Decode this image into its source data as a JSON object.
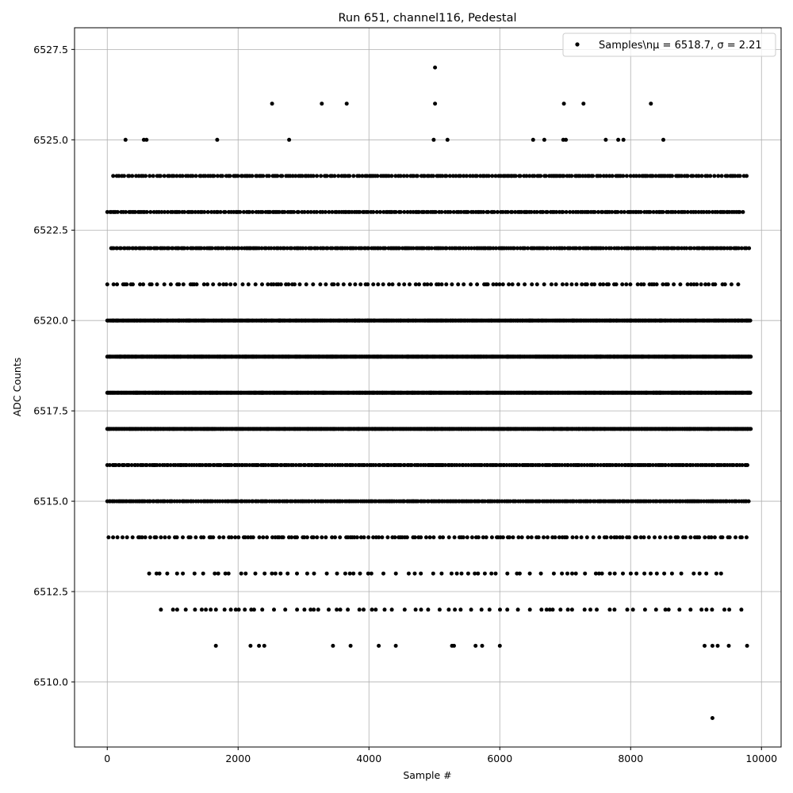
{
  "chart_data": {
    "type": "scatter",
    "title": "Run 651, channel116, Pedestal",
    "xlabel": "Sample #",
    "ylabel": "ADC Counts",
    "xlim": [
      -500,
      10300
    ],
    "ylim": [
      6508.2,
      6528.1
    ],
    "xticks": [
      0,
      2000,
      4000,
      6000,
      8000,
      10000
    ],
    "xtick_labels": [
      "0",
      "2000",
      "4000",
      "6000",
      "8000",
      "10000"
    ],
    "yticks": [
      6510.0,
      6512.5,
      6515.0,
      6517.5,
      6520.0,
      6522.5,
      6525.0,
      6527.5
    ],
    "ytick_labels": [
      "6510.0",
      "6512.5",
      "6515.0",
      "6517.5",
      "6520.0",
      "6522.5",
      "6525.0",
      "6527.5"
    ],
    "grid": true,
    "legend": {
      "position": "top-right",
      "label": "Samples\\n$\\mu$ = 6518.7, $\\sigma$ = 2.21",
      "label_display": "Samples\\nμ = 6518.7, σ = 2.21"
    },
    "marker_color": "#000000",
    "n_samples": 9850,
    "series": [
      {
        "name": "Samples\\nμ = 6518.7, σ = 2.21",
        "levels": [
          {
            "y": 6518,
            "x_start": 0,
            "x_end": 9840,
            "step": 12
          },
          {
            "y": 6519,
            "x_start": 0,
            "x_end": 9840,
            "step": 13
          },
          {
            "y": 6520,
            "x_start": 0,
            "x_end": 9840,
            "step": 14
          },
          {
            "y": 6517,
            "x_start": 0,
            "x_end": 9840,
            "step": 15
          },
          {
            "y": 6516,
            "x_start": 0,
            "x_end": 9820,
            "step": 28
          },
          {
            "y": 6515,
            "x_start": 0,
            "x_end": 9820,
            "step": 26
          },
          {
            "y": 6522,
            "x_start": 60,
            "x_end": 9820,
            "step": 30
          },
          {
            "y": 6523,
            "x_start": 0,
            "x_end": 9720,
            "step": 34
          },
          {
            "y": 6524,
            "x_start": 90,
            "x_end": 9780,
            "step": 38
          },
          {
            "y": 6521,
            "x_start": 0,
            "x_end": 9720,
            "step": 70
          },
          {
            "y": 6514,
            "x_start": 20,
            "x_end": 9800,
            "step": 58
          },
          {
            "y": 6513,
            "x_start": 640,
            "x_end": 9500,
            "step": 120
          },
          {
            "y": 6512,
            "x_start": 820,
            "x_end": 9710,
            "step": 125
          }
        ],
        "points": [
          {
            "x": 280,
            "y": 6525
          },
          {
            "x": 560,
            "y": 6525
          },
          {
            "x": 600,
            "y": 6525
          },
          {
            "x": 1680,
            "y": 6525
          },
          {
            "x": 2780,
            "y": 6525
          },
          {
            "x": 4990,
            "y": 6525
          },
          {
            "x": 5200,
            "y": 6525
          },
          {
            "x": 6510,
            "y": 6525
          },
          {
            "x": 6680,
            "y": 6525
          },
          {
            "x": 6970,
            "y": 6525
          },
          {
            "x": 7010,
            "y": 6525
          },
          {
            "x": 7620,
            "y": 6525
          },
          {
            "x": 7810,
            "y": 6525
          },
          {
            "x": 7890,
            "y": 6525
          },
          {
            "x": 8500,
            "y": 6525
          },
          {
            "x": 2520,
            "y": 6526
          },
          {
            "x": 3280,
            "y": 6526
          },
          {
            "x": 3660,
            "y": 6526
          },
          {
            "x": 5010,
            "y": 6526
          },
          {
            "x": 6980,
            "y": 6526
          },
          {
            "x": 7280,
            "y": 6526
          },
          {
            "x": 8310,
            "y": 6526
          },
          {
            "x": 5010,
            "y": 6527
          },
          {
            "x": 1660,
            "y": 6511
          },
          {
            "x": 2190,
            "y": 6511
          },
          {
            "x": 2320,
            "y": 6511
          },
          {
            "x": 2400,
            "y": 6511
          },
          {
            "x": 3450,
            "y": 6511
          },
          {
            "x": 3720,
            "y": 6511
          },
          {
            "x": 4150,
            "y": 6511
          },
          {
            "x": 4410,
            "y": 6511
          },
          {
            "x": 5270,
            "y": 6511
          },
          {
            "x": 5300,
            "y": 6511
          },
          {
            "x": 5630,
            "y": 6511
          },
          {
            "x": 5730,
            "y": 6511
          },
          {
            "x": 6000,
            "y": 6511
          },
          {
            "x": 9130,
            "y": 6511
          },
          {
            "x": 9250,
            "y": 6511
          },
          {
            "x": 9330,
            "y": 6511
          },
          {
            "x": 9500,
            "y": 6511
          },
          {
            "x": 9780,
            "y": 6511
          },
          {
            "x": 9250,
            "y": 6509
          }
        ]
      }
    ]
  }
}
